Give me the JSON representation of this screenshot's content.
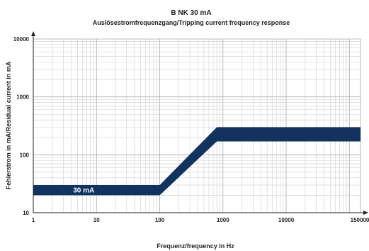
{
  "chart_data": {
    "type": "area",
    "title": "B NK 30 mA",
    "subtitle": "Auslösestromfrequenzgang/Tripping current frequency response",
    "xlabel": "Frequenz/frequency in Hz",
    "ylabel": "Fehlerstrom in mA/Residual current in mA",
    "x_scale": "log",
    "y_scale": "log",
    "xlim": [
      1,
      150000
    ],
    "ylim": [
      10,
      10000
    ],
    "x_ticks": [
      1,
      10,
      100,
      1000,
      10000,
      150000
    ],
    "x_tick_labels": [
      "1",
      "10",
      "100",
      "1000",
      "10000",
      "150000"
    ],
    "y_ticks": [
      10,
      100,
      1000,
      10000
    ],
    "y_tick_labels": [
      "10",
      "100",
      "1000",
      "10000"
    ],
    "grid": true,
    "band_color": "#12335e",
    "series": [
      {
        "name": "30 mA",
        "x": [
          1,
          100,
          800,
          150000
        ],
        "lower": [
          20,
          20,
          170,
          170
        ],
        "upper": [
          30,
          30,
          300,
          300
        ]
      }
    ]
  }
}
